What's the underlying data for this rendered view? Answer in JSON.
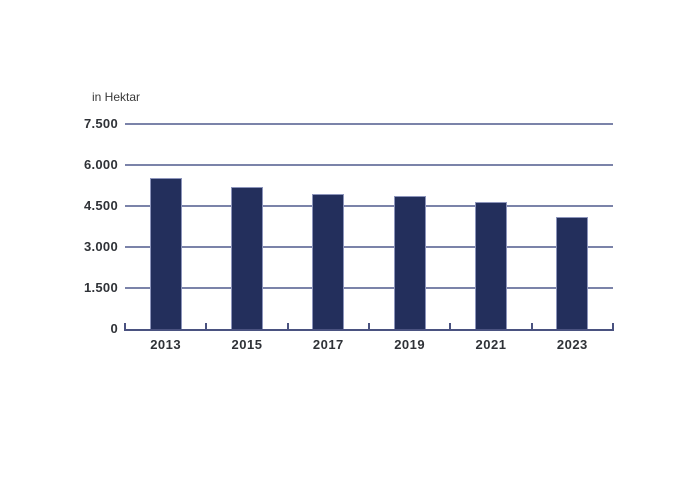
{
  "chart_data": {
    "type": "bar",
    "unit_label": "in Hektar",
    "categories": [
      "2013",
      "2015",
      "2017",
      "2019",
      "2021",
      "2023"
    ],
    "values": [
      5520,
      5185,
      4935,
      4850,
      4660,
      4085
    ],
    "ylim": [
      0,
      7500
    ],
    "yticks": [
      0,
      1500,
      3000,
      4500,
      6000,
      7500
    ],
    "ytick_labels": [
      "0",
      "1.500",
      "3.000",
      "4.500",
      "6.000",
      "7.500"
    ],
    "grid": true,
    "legend": false,
    "colors": {
      "bar": "#232f5c",
      "bar_border": "#8d95bb",
      "gridline": "#7b83a9",
      "axis": "#4a5280",
      "tick_label": "#2f3237",
      "unit_label": "#3a3a3a",
      "background": "#ffffff"
    }
  }
}
